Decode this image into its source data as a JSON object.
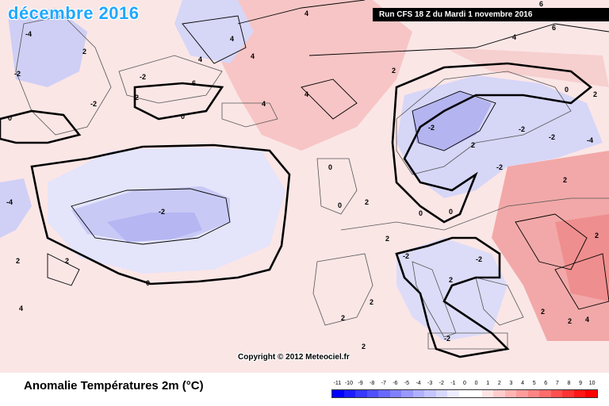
{
  "header": {
    "title": "décembre 2016",
    "run_info": "Run CFS 18 Z du Mardi 1 novembre 2016"
  },
  "map": {
    "copyright": "Copyright © 2012 Meteociel.fr",
    "contour_labels": [
      "-4",
      "-2",
      "2",
      "6",
      "-2",
      "2",
      "4",
      "6",
      "4",
      "2",
      "4",
      "-2",
      "2",
      "0",
      "-2",
      "-4",
      "-2",
      "2",
      "4",
      "6",
      "-2",
      "4",
      "4",
      "4",
      "2",
      "2",
      "0",
      "4",
      "0",
      "-2",
      "-2",
      "-2",
      "0",
      "-4",
      "2",
      "0",
      "2",
      "0",
      "2",
      "2",
      "0",
      "-2",
      "2",
      "0",
      "2",
      "2",
      "-2",
      "2",
      "2",
      "2",
      "4"
    ]
  },
  "legend": {
    "variable": "Anomalie Températures 2m (°C)",
    "ticks": [
      "-11",
      "-10",
      "-9",
      "-8",
      "-7",
      "-6",
      "-5",
      "-4",
      "-3",
      "-2",
      "-1",
      "0",
      "0",
      "1",
      "2",
      "3",
      "4",
      "5",
      "6",
      "7",
      "8",
      "9",
      "10"
    ],
    "colors": [
      "#0000ff",
      "#1c1cff",
      "#3838ff",
      "#5050ff",
      "#6868ff",
      "#8080ff",
      "#9898ff",
      "#b0b0ff",
      "#c4c4ff",
      "#d8d8ff",
      "#ececff",
      "#ffffff",
      "#ffffff",
      "#ffe4e4",
      "#ffcccc",
      "#ffb4b4",
      "#ff9c9c",
      "#ff8484",
      "#ff6c6c",
      "#ff5050",
      "#ff3434",
      "#ff1818",
      "#ff0000"
    ]
  }
}
